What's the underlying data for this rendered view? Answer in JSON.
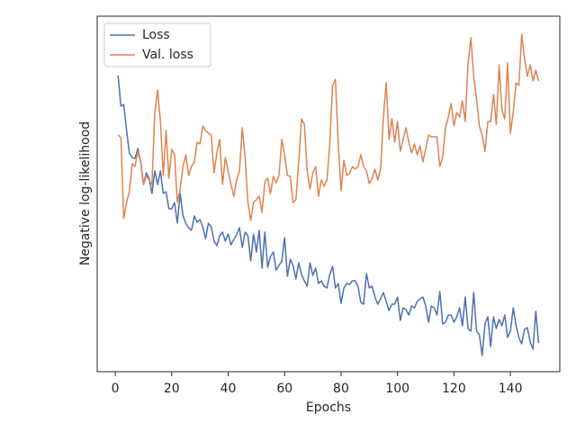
{
  "chart_data": {
    "type": "line",
    "x_label": "Epochs",
    "y_label": "Negative log-likelihood",
    "x": [
      1,
      2,
      3,
      4,
      5,
      6,
      7,
      8,
      9,
      10,
      11,
      12,
      13,
      14,
      15,
      16,
      17,
      18,
      19,
      20,
      21,
      22,
      23,
      24,
      25,
      26,
      27,
      28,
      29,
      30,
      31,
      32,
      33,
      34,
      35,
      36,
      37,
      38,
      39,
      40,
      41,
      42,
      43,
      44,
      45,
      46,
      47,
      48,
      49,
      50,
      51,
      52,
      53,
      54,
      55,
      56,
      57,
      58,
      59,
      60,
      61,
      62,
      63,
      64,
      65,
      66,
      67,
      68,
      69,
      70,
      71,
      72,
      73,
      74,
      75,
      76,
      77,
      78,
      79,
      80,
      81,
      82,
      83,
      84,
      85,
      86,
      87,
      88,
      89,
      90,
      91,
      92,
      93,
      94,
      95,
      96,
      97,
      98,
      99,
      100,
      101,
      102,
      103,
      104,
      105,
      106,
      107,
      108,
      109,
      110,
      111,
      112,
      113,
      114,
      115,
      116,
      117,
      118,
      119,
      120,
      121,
      122,
      123,
      124,
      125,
      126,
      127,
      128,
      129,
      130,
      131,
      132,
      133,
      134,
      135,
      136,
      137,
      138,
      139,
      140,
      141,
      142,
      143,
      144,
      145,
      146,
      147,
      148,
      149,
      150
    ],
    "series": [
      {
        "name": "Loss",
        "color": "#4c72b0",
        "values": [
          329,
          295,
          297,
          268,
          243,
          238,
          237,
          248,
          233,
          208,
          221,
          215,
          198,
          223,
          208,
          223,
          198,
          200,
          181,
          181,
          188,
          165,
          198,
          173,
          165,
          160,
          157,
          173,
          166,
          169,
          161,
          148,
          165,
          161,
          145,
          140,
          151,
          155,
          145,
          153,
          141,
          147,
          152,
          160,
          138,
          155,
          151,
          123,
          153,
          133,
          157,
          115,
          155,
          116,
          128,
          133,
          113,
          118,
          123,
          149,
          106,
          125,
          118,
          103,
          121,
          108,
          101,
          95,
          121,
          107,
          115,
          98,
          101,
          95,
          93,
          108,
          117,
          93,
          98,
          76,
          93,
          98,
          97,
          101,
          101,
          95,
          77,
          75,
          109,
          93,
          95,
          83,
          75,
          81,
          88,
          78,
          68,
          75,
          75,
          83,
          57,
          71,
          69,
          63,
          73,
          71,
          78,
          81,
          83,
          73,
          55,
          73,
          71,
          63,
          89,
          53,
          55,
          63,
          63,
          55,
          61,
          71,
          51,
          83,
          48,
          45,
          88,
          45,
          41,
          18,
          53,
          61,
          28,
          61,
          48,
          58,
          51,
          63,
          38,
          45,
          71,
          51,
          38,
          31,
          47,
          49,
          33,
          25,
          67,
          32
        ]
      },
      {
        "name": "Val. loss",
        "color": "#dd8452",
        "values": [
          263,
          260,
          170,
          188,
          200,
          231,
          228,
          245,
          233,
          208,
          218,
          213,
          208,
          288,
          313,
          278,
          218,
          268,
          215,
          247,
          241,
          188,
          203,
          228,
          241,
          218,
          228,
          233,
          255,
          253,
          273,
          268,
          265,
          263,
          221,
          243,
          258,
          208,
          238,
          223,
          208,
          195,
          213,
          223,
          271,
          238,
          188,
          168,
          188,
          191,
          195,
          177,
          211,
          215,
          198,
          217,
          210,
          218,
          258,
          241,
          218,
          217,
          188,
          191,
          233,
          281,
          275,
          223,
          203,
          221,
          228,
          195,
          213,
          206,
          213,
          253,
          318,
          325,
          253,
          201,
          235,
          218,
          220,
          228,
          225,
          228,
          241,
          228,
          223,
          209,
          215,
          225,
          213,
          225,
          283,
          321,
          258,
          281,
          255,
          278,
          245,
          258,
          271,
          255,
          243,
          253,
          241,
          251,
          233,
          248,
          263,
          261,
          261,
          261,
          228,
          238,
          271,
          283,
          298,
          273,
          288,
          283,
          301,
          278,
          343,
          371,
          328,
          303,
          273,
          263,
          245,
          278,
          278,
          308,
          275,
          341,
          291,
          281,
          343,
          265,
          288,
          321,
          318,
          375,
          348,
          328,
          341,
          323,
          335,
          323
        ]
      }
    ],
    "xlim": [
      -6.4,
      157.5
    ],
    "xticks": [
      0,
      20,
      40,
      60,
      80,
      100,
      120,
      140
    ],
    "ylim": [
      0,
      395
    ],
    "legend": "upper left"
  }
}
